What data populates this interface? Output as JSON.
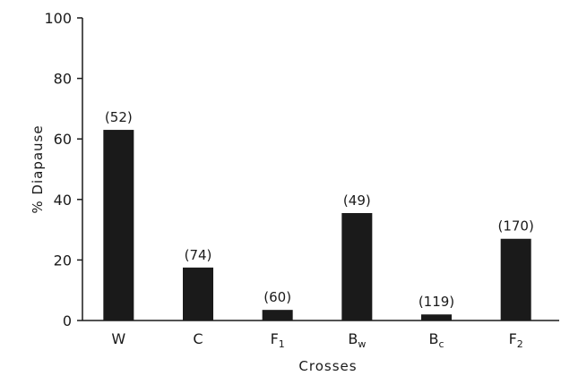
{
  "chart_data": {
    "type": "bar",
    "ylabel": "% Diapause",
    "xlabel": "Crosses",
    "ylim": [
      0,
      100
    ],
    "yticks": [
      "0",
      "20",
      "40",
      "60",
      "80",
      "100"
    ],
    "grid": false,
    "categories": [
      {
        "main": "W",
        "sub": ""
      },
      {
        "main": "C",
        "sub": ""
      },
      {
        "main": "F",
        "sub": "1"
      },
      {
        "main": "B",
        "sub": "w"
      },
      {
        "main": "B",
        "sub": "c"
      },
      {
        "main": "F",
        "sub": "2"
      }
    ],
    "values": [
      63,
      17.5,
      3.5,
      35.5,
      2,
      27
    ],
    "data_labels": [
      "(52)",
      "(74)",
      "(60)",
      "(49)",
      "(119)",
      "(170)"
    ],
    "bar_color": "#1a1a1a"
  }
}
